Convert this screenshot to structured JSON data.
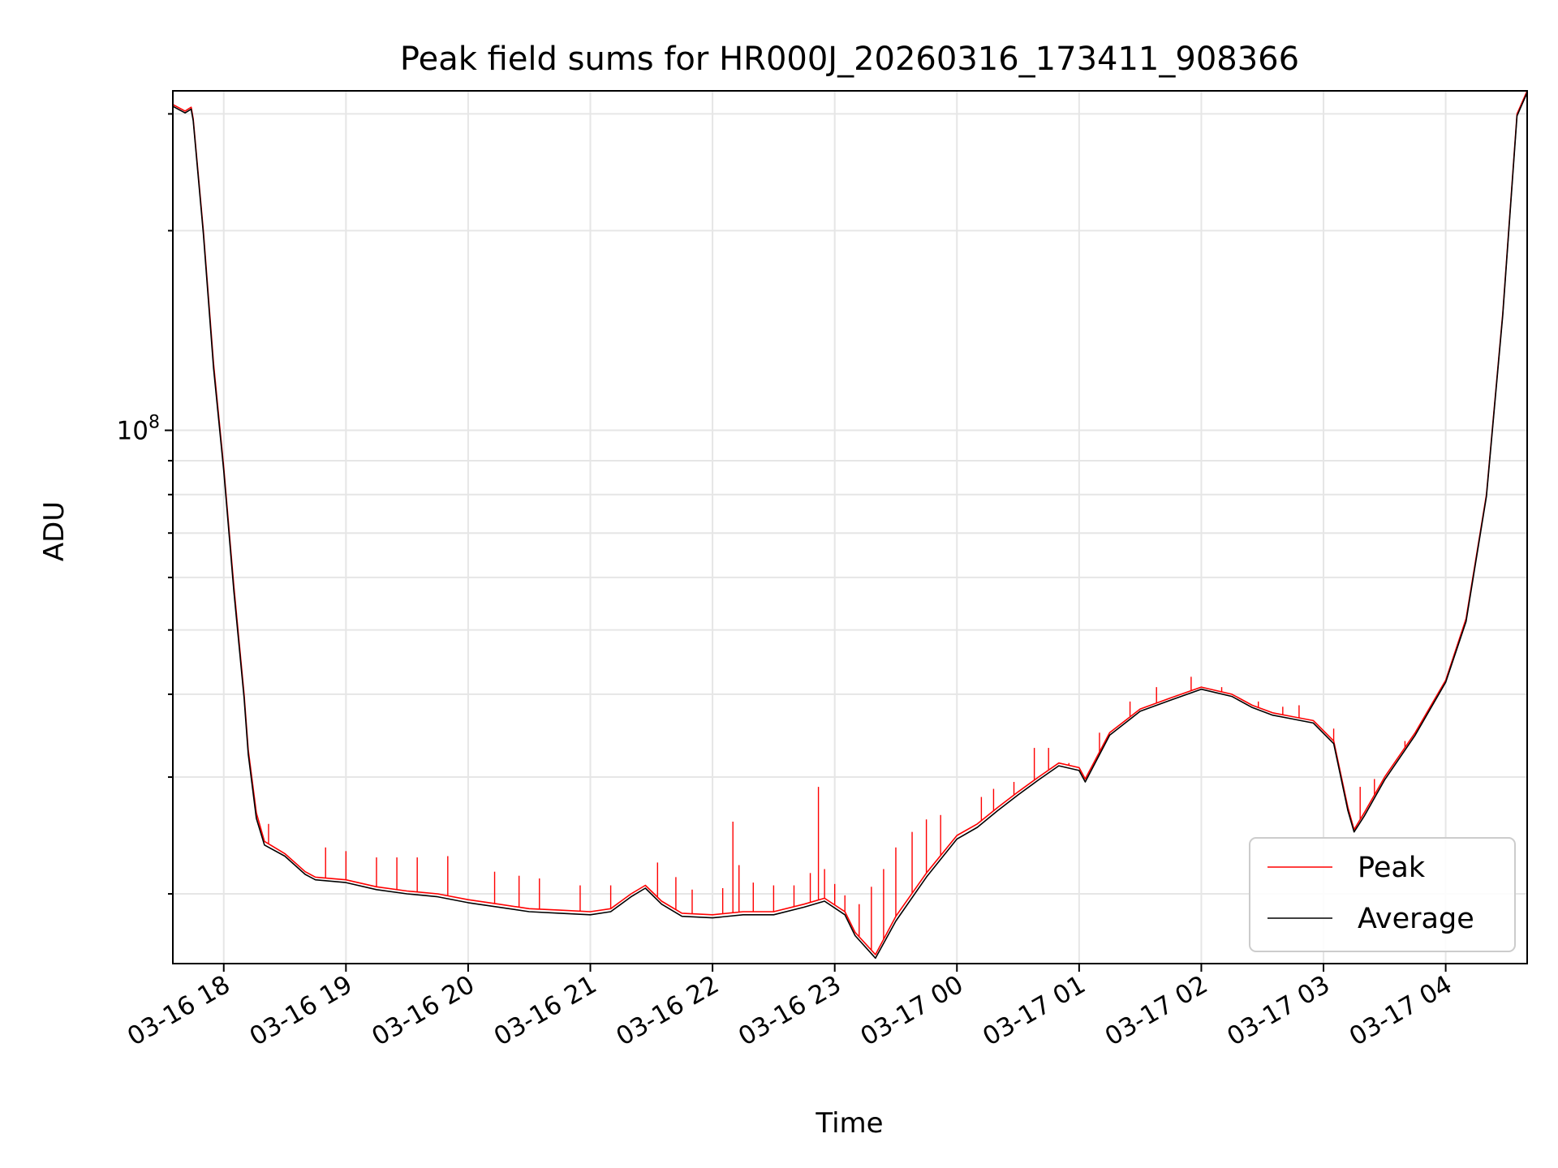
{
  "chart_data": {
    "type": "line",
    "title": "Peak field sums for HR000J_20260316_173411_908366",
    "xlabel": "Time",
    "ylabel": "ADU",
    "yscale": "log",
    "ylim": [
      15700000,
      325000000
    ],
    "xlim": [
      "2026-03-16 17:35",
      "2026-03-17 04:40"
    ],
    "x_ticks": [
      "03-16 18",
      "03-16 19",
      "03-16 20",
      "03-16 21",
      "03-16 22",
      "03-16 23",
      "03-17 00",
      "03-17 01",
      "03-17 02",
      "03-17 03",
      "03-17 04"
    ],
    "y_ticks": [
      {
        "value": 100000000,
        "base": "10",
        "exponent": "8"
      }
    ],
    "grid": true,
    "legend_position": "lower right",
    "series": [
      {
        "name": "Peak",
        "color": "#ff0000",
        "x": [
          "2026-03-16 17:35",
          "2026-03-16 17:41",
          "2026-03-16 17:44",
          "2026-03-16 17:45",
          "2026-03-16 17:50",
          "2026-03-16 17:55",
          "2026-03-16 18:00",
          "2026-03-16 18:05",
          "2026-03-16 18:10",
          "2026-03-16 18:12",
          "2026-03-16 18:16",
          "2026-03-16 18:20",
          "2026-03-16 18:30",
          "2026-03-16 18:40",
          "2026-03-16 18:45",
          "2026-03-16 19:00",
          "2026-03-16 19:15",
          "2026-03-16 19:30",
          "2026-03-16 19:45",
          "2026-03-16 20:00",
          "2026-03-16 20:15",
          "2026-03-16 20:30",
          "2026-03-16 20:45",
          "2026-03-16 21:00",
          "2026-03-16 21:10",
          "2026-03-16 21:20",
          "2026-03-16 21:27",
          "2026-03-16 21:35",
          "2026-03-16 21:45",
          "2026-03-16 22:00",
          "2026-03-16 22:15",
          "2026-03-16 22:30",
          "2026-03-16 22:45",
          "2026-03-16 22:55",
          "2026-03-16 23:05",
          "2026-03-16 23:10",
          "2026-03-16 23:20",
          "2026-03-16 23:30",
          "2026-03-16 23:45",
          "2026-03-17 00:00",
          "2026-03-17 00:10",
          "2026-03-17 00:20",
          "2026-03-17 00:30",
          "2026-03-17 00:40",
          "2026-03-17 00:50",
          "2026-03-17 01:00",
          "2026-03-17 01:03",
          "2026-03-17 01:15",
          "2026-03-17 01:30",
          "2026-03-17 01:45",
          "2026-03-17 02:00",
          "2026-03-17 02:15",
          "2026-03-17 02:25",
          "2026-03-17 02:35",
          "2026-03-17 02:45",
          "2026-03-17 02:55",
          "2026-03-17 03:05",
          "2026-03-17 03:12",
          "2026-03-17 03:15",
          "2026-03-17 03:20",
          "2026-03-17 03:30",
          "2026-03-17 03:45",
          "2026-03-17 04:00",
          "2026-03-17 04:10",
          "2026-03-17 04:20",
          "2026-03-17 04:28",
          "2026-03-17 04:35",
          "2026-03-17 04:40"
        ],
        "y": [
          310000000,
          303000000,
          307000000,
          295000000,
          200000000,
          126000000,
          88000000,
          58000000,
          40000000,
          33000000,
          26500000,
          24000000,
          23000000,
          21600000,
          21200000,
          21000000,
          20500000,
          20200000,
          20000000,
          19600000,
          19300000,
          19000000,
          18900000,
          18800000,
          19000000,
          20000000,
          20600000,
          19500000,
          18700000,
          18600000,
          18800000,
          18800000,
          19300000,
          19700000,
          18800000,
          17500000,
          16200000,
          18500000,
          21500000,
          24500000,
          25500000,
          27000000,
          28500000,
          30000000,
          31500000,
          31000000,
          29800000,
          35000000,
          38000000,
          39500000,
          41000000,
          40000000,
          38500000,
          37500000,
          37000000,
          36500000,
          34000000,
          27000000,
          25000000,
          26500000,
          30000000,
          35000000,
          42000000,
          52000000,
          80000000,
          150000000,
          300000000,
          325000000
        ],
        "spikes": [
          [
            "2026-03-16 18:22",
            25500000
          ],
          [
            "2026-03-16 18:50",
            23500000
          ],
          [
            "2026-03-16 19:00",
            23200000
          ],
          [
            "2026-03-16 19:15",
            22700000
          ],
          [
            "2026-03-16 19:25",
            22700000
          ],
          [
            "2026-03-16 19:35",
            22700000
          ],
          [
            "2026-03-16 19:50",
            22800000
          ],
          [
            "2026-03-16 20:13",
            21600000
          ],
          [
            "2026-03-16 20:25",
            21300000
          ],
          [
            "2026-03-16 20:35",
            21100000
          ],
          [
            "2026-03-16 20:55",
            20600000
          ],
          [
            "2026-03-16 21:10",
            20600000
          ],
          [
            "2026-03-16 21:33",
            22300000
          ],
          [
            "2026-03-16 21:42",
            21200000
          ],
          [
            "2026-03-16 21:50",
            20300000
          ],
          [
            "2026-03-16 22:05",
            20400000
          ],
          [
            "2026-03-16 22:10",
            25700000
          ],
          [
            "2026-03-16 22:13",
            22100000
          ],
          [
            "2026-03-16 22:20",
            20800000
          ],
          [
            "2026-03-16 22:30",
            20600000
          ],
          [
            "2026-03-16 22:40",
            20600000
          ],
          [
            "2026-03-16 22:48",
            21500000
          ],
          [
            "2026-03-16 22:52",
            29000000
          ],
          [
            "2026-03-16 22:55",
            21800000
          ],
          [
            "2026-03-16 23:00",
            20700000
          ],
          [
            "2026-03-16 23:05",
            19900000
          ],
          [
            "2026-03-16 23:12",
            19300000
          ],
          [
            "2026-03-16 23:18",
            20500000
          ],
          [
            "2026-03-16 23:24",
            21800000
          ],
          [
            "2026-03-16 23:30",
            23500000
          ],
          [
            "2026-03-16 23:38",
            24800000
          ],
          [
            "2026-03-16 23:45",
            25900000
          ],
          [
            "2026-03-16 23:52",
            26300000
          ],
          [
            "2026-03-17 00:12",
            28000000
          ],
          [
            "2026-03-17 00:18",
            28800000
          ],
          [
            "2026-03-17 00:28",
            29500000
          ],
          [
            "2026-03-17 00:38",
            33200000
          ],
          [
            "2026-03-17 00:45",
            33200000
          ],
          [
            "2026-03-17 00:55",
            31500000
          ],
          [
            "2026-03-17 01:10",
            35000000
          ],
          [
            "2026-03-17 01:25",
            39000000
          ],
          [
            "2026-03-17 01:38",
            41000000
          ],
          [
            "2026-03-17 01:55",
            42500000
          ],
          [
            "2026-03-17 02:10",
            41000000
          ],
          [
            "2026-03-17 02:28",
            39000000
          ],
          [
            "2026-03-17 02:40",
            38300000
          ],
          [
            "2026-03-17 02:48",
            38500000
          ],
          [
            "2026-03-17 03:05",
            35500000
          ],
          [
            "2026-03-17 03:18",
            29000000
          ],
          [
            "2026-03-17 03:25",
            29800000
          ],
          [
            "2026-03-17 03:40",
            34000000
          ]
        ]
      },
      {
        "name": "Average",
        "color": "#000000",
        "x": [
          "2026-03-16 17:35",
          "2026-03-16 17:41",
          "2026-03-16 17:44",
          "2026-03-16 17:45",
          "2026-03-16 17:50",
          "2026-03-16 17:55",
          "2026-03-16 18:00",
          "2026-03-16 18:05",
          "2026-03-16 18:10",
          "2026-03-16 18:12",
          "2026-03-16 18:16",
          "2026-03-16 18:20",
          "2026-03-16 18:30",
          "2026-03-16 18:40",
          "2026-03-16 18:45",
          "2026-03-16 19:00",
          "2026-03-16 19:15",
          "2026-03-16 19:30",
          "2026-03-16 19:45",
          "2026-03-16 20:00",
          "2026-03-16 20:15",
          "2026-03-16 20:30",
          "2026-03-16 20:45",
          "2026-03-16 21:00",
          "2026-03-16 21:10",
          "2026-03-16 21:20",
          "2026-03-16 21:27",
          "2026-03-16 21:35",
          "2026-03-16 21:45",
          "2026-03-16 22:00",
          "2026-03-16 22:15",
          "2026-03-16 22:30",
          "2026-03-16 22:45",
          "2026-03-16 22:55",
          "2026-03-16 23:05",
          "2026-03-16 23:10",
          "2026-03-16 23:20",
          "2026-03-16 23:30",
          "2026-03-16 23:45",
          "2026-03-17 00:00",
          "2026-03-17 00:10",
          "2026-03-17 00:20",
          "2026-03-17 00:30",
          "2026-03-17 00:40",
          "2026-03-17 00:50",
          "2026-03-17 01:00",
          "2026-03-17 01:03",
          "2026-03-17 01:15",
          "2026-03-17 01:30",
          "2026-03-17 01:45",
          "2026-03-17 02:00",
          "2026-03-17 02:15",
          "2026-03-17 02:25",
          "2026-03-17 02:35",
          "2026-03-17 02:45",
          "2026-03-17 02:55",
          "2026-03-17 03:05",
          "2026-03-17 03:12",
          "2026-03-17 03:15",
          "2026-03-17 03:20",
          "2026-03-17 03:30",
          "2026-03-17 03:45",
          "2026-03-17 04:00",
          "2026-03-17 04:10",
          "2026-03-17 04:20",
          "2026-03-17 04:28",
          "2026-03-17 04:35",
          "2026-03-17 04:40"
        ],
        "y": [
          308000000,
          301000000,
          305000000,
          293000000,
          198000000,
          124000000,
          87000000,
          57000000,
          39500000,
          32500000,
          26000000,
          23700000,
          22800000,
          21400000,
          21000000,
          20800000,
          20300000,
          20000000,
          19800000,
          19400000,
          19100000,
          18800000,
          18700000,
          18600000,
          18800000,
          19800000,
          20400000,
          19300000,
          18500000,
          18400000,
          18600000,
          18600000,
          19100000,
          19500000,
          18600000,
          17300000,
          16000000,
          18200000,
          21200000,
          24200000,
          25200000,
          26700000,
          28200000,
          29700000,
          31200000,
          30700000,
          29500000,
          34700000,
          37700000,
          39200000,
          40700000,
          39700000,
          38200000,
          37200000,
          36700000,
          36200000,
          33700000,
          26700000,
          24800000,
          26200000,
          29700000,
          34700000,
          41700000,
          51500000,
          79500000,
          149000000,
          298000000,
          323000000
        ]
      }
    ]
  }
}
